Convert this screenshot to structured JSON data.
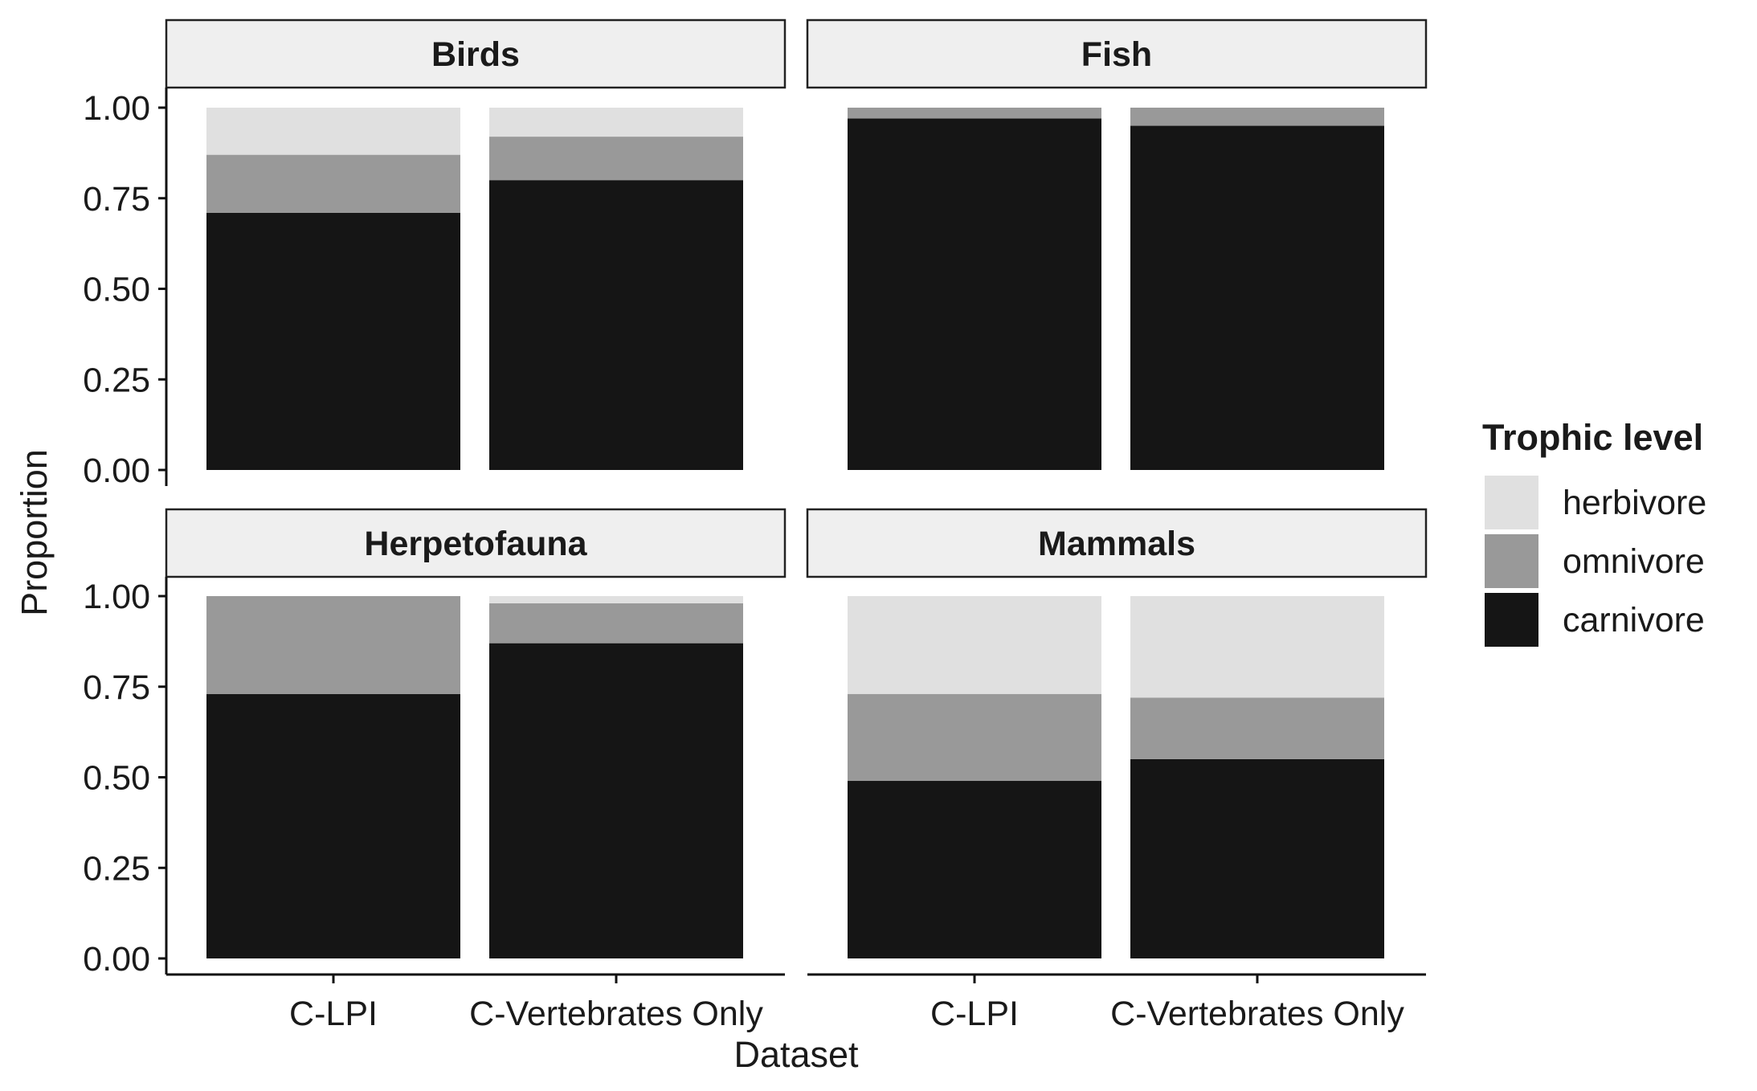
{
  "chart_data": {
    "type": "bar",
    "stacked": true,
    "ylabel": "Proportion",
    "xlabel": "Dataset",
    "ylim": [
      0,
      1
    ],
    "y_ticks": [
      "0.00",
      "0.25",
      "0.50",
      "0.75",
      "1.00"
    ],
    "categories": [
      "C-LPI",
      "C-Vertebrates Only"
    ],
    "legend": {
      "title": "Trophic level",
      "position": "right",
      "entries": [
        {
          "name": "herbivore",
          "color": "#e0e0e0"
        },
        {
          "name": "omnivore",
          "color": "#999999"
        },
        {
          "name": "carnivore",
          "color": "#151515"
        }
      ]
    },
    "panels": [
      {
        "title": "Birds",
        "series": [
          {
            "name": "carnivore",
            "values": [
              0.71,
              0.8
            ]
          },
          {
            "name": "omnivore",
            "values": [
              0.16,
              0.12
            ]
          },
          {
            "name": "herbivore",
            "values": [
              0.13,
              0.08
            ]
          }
        ]
      },
      {
        "title": "Fish",
        "series": [
          {
            "name": "carnivore",
            "values": [
              0.97,
              0.95
            ]
          },
          {
            "name": "omnivore",
            "values": [
              0.03,
              0.05
            ]
          },
          {
            "name": "herbivore",
            "values": [
              0.0,
              0.0
            ]
          }
        ]
      },
      {
        "title": "Herpetofauna",
        "series": [
          {
            "name": "carnivore",
            "values": [
              0.73,
              0.87
            ]
          },
          {
            "name": "omnivore",
            "values": [
              0.27,
              0.11
            ]
          },
          {
            "name": "herbivore",
            "values": [
              0.0,
              0.02
            ]
          }
        ]
      },
      {
        "title": "Mammals",
        "series": [
          {
            "name": "carnivore",
            "values": [
              0.49,
              0.55
            ]
          },
          {
            "name": "omnivore",
            "values": [
              0.24,
              0.17
            ]
          },
          {
            "name": "herbivore",
            "values": [
              0.27,
              0.28
            ]
          }
        ]
      }
    ]
  }
}
